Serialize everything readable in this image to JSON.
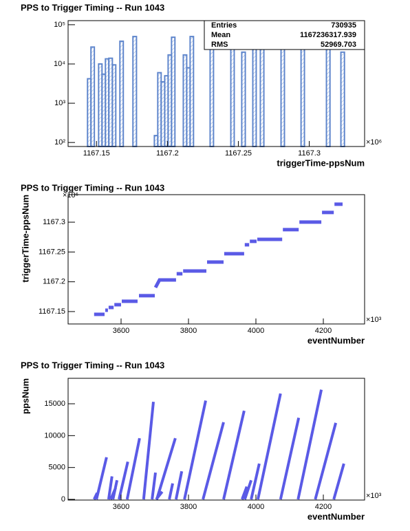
{
  "chart_data": [
    {
      "type": "histogram",
      "title": "PPS to Trigger Timing -- Run 1043",
      "x_label": "triggerTime-ppsNum",
      "x_multiplier": "×10⁶",
      "color": "#5f86cc",
      "log_y": true,
      "bins": [
        1167.1437,
        1167.1461,
        1167.1485,
        1167.1515,
        1167.1539,
        1167.1563,
        1167.1587,
        1167.1612,
        1167.1636,
        1167.1665,
        1167.1689,
        1167.1757,
        1167.1782,
        1167.1908,
        1167.1932,
        1167.1956,
        1167.1981,
        1167.2005,
        1167.2029,
        1167.2053,
        1167.2112,
        1167.2136,
        1167.216,
        1167.2184,
        1167.2301,
        1167.2325,
        1167.2447,
        1167.2471,
        1167.2524,
        1167.2549,
        1167.2602,
        1167.2626,
        1167.2655,
        1167.268,
        1167.2801,
        1167.2825,
        1167.2942,
        1167.2966,
        1167.3121,
        1167.3146,
        1167.3223,
        1167.3248
      ],
      "counts": [
        4200,
        27000,
        0,
        10000,
        5500,
        13500,
        14000,
        9500,
        0,
        38000,
        0,
        50000,
        0,
        150,
        6000,
        3500,
        5000,
        17000,
        48000,
        0,
        17000,
        8000,
        50000,
        0,
        45000,
        0,
        60000,
        0,
        20000,
        0,
        25000,
        0,
        65000,
        0,
        45000,
        0,
        50000,
        0,
        55000,
        0,
        20000
      ],
      "xlim": [
        1167.13,
        1167.339
      ],
      "xticks": [
        1167.15,
        1167.2,
        1167.25,
        1167.3
      ],
      "ylim": [
        79,
        127000
      ],
      "yticks": [
        {
          "value": 100,
          "label": "10²"
        },
        {
          "value": 1000,
          "label": "10³"
        },
        {
          "value": 10000,
          "label": "10⁴"
        },
        {
          "value": 100000,
          "label": "10⁵"
        }
      ],
      "stats": [
        {
          "label": "Entries",
          "value": 730935
        },
        {
          "label": "Mean",
          "value": 1167236317.939
        },
        {
          "label": "RMS",
          "value": 52969.703
        }
      ]
    },
    {
      "type": "line",
      "title": "PPS to Trigger Timing -- Run 1043",
      "x_label": "eventNumber",
      "y_label": "triggerTime-ppsNum",
      "x_multiplier": "×10³",
      "y_multiplier": "×10⁶",
      "color": "#5a5ae6",
      "x": [
        3520,
        3551,
        null,
        3553,
        3561,
        null,
        3563,
        3578,
        null,
        3580,
        3600,
        null,
        3602,
        3649,
        null,
        3653,
        3700,
        null,
        3702,
        3714,
        3763,
        null,
        3765,
        3782,
        null,
        3784,
        3853,
        null,
        3855,
        3904,
        null,
        3906,
        3965,
        null,
        3967,
        3980,
        null,
        3982,
        4002,
        null,
        4004,
        4078,
        null,
        4080,
        4127,
        null,
        4129,
        4194,
        null,
        4196,
        4231,
        null,
        4233,
        4257
      ],
      "values": [
        1167.1454,
        1167.1454,
        null,
        1167.1523,
        1167.1523,
        null,
        1167.1569,
        1167.1569,
        null,
        1167.1615,
        1167.1615,
        null,
        1167.1673,
        1167.1673,
        null,
        1167.1766,
        1167.1766,
        null,
        1167.1904,
        1167.2031,
        1167.2031,
        null,
        1167.2135,
        1167.2135,
        null,
        1167.2181,
        1167.2181,
        null,
        1167.2331,
        1167.2331,
        null,
        1167.247,
        1167.247,
        null,
        1167.262,
        1167.262,
        null,
        1167.2678,
        1167.2678,
        null,
        1167.2712,
        1167.2712,
        null,
        1167.2874,
        1167.2874,
        null,
        1167.3001,
        1167.3001,
        null,
        1167.3163,
        1167.3163,
        null,
        1167.3301,
        1167.3301
      ],
      "xlim": [
        3442.9,
        4322.4
      ],
      "xticks": [
        3600,
        3800,
        4000,
        4200
      ],
      "ylim": [
        1167.1292,
        1167.3462
      ],
      "yticks": [
        1167.15,
        1167.2,
        1167.25,
        1167.3
      ]
    },
    {
      "type": "line",
      "title": "PPS to Trigger Timing -- Run 1043",
      "x_label": "eventNumber",
      "y_label": "ppsNum",
      "x_multiplier": "×10³",
      "color": "#5a5ae6",
      "x": [
        3520,
        3529,
        null,
        3527,
        3557,
        null,
        3563,
        3573,
        null,
        3569,
        3584,
        null,
        3576,
        3588,
        null,
        3594,
        3620,
        null,
        3618,
        3655,
        null,
        3667,
        3696,
        null,
        3692,
        3702,
        null,
        3704,
        3722,
        null,
        3706,
        3761,
        null,
        3743,
        3753,
        null,
        3763,
        3780,
        null,
        3788,
        3851,
        null,
        3843,
        3904,
        null,
        3904,
        3965,
        null,
        3959,
        3973,
        null,
        3967,
        3986,
        null,
        3986,
        4010,
        null,
        4006,
        4073,
        null,
        4073,
        4127,
        null,
        4125,
        4194,
        null,
        4176,
        4237,
        null,
        4231,
        4261
      ],
      "values": [
        0,
        1000,
        null,
        0,
        6600,
        null,
        0,
        3600,
        null,
        0,
        1800,
        null,
        0,
        3000,
        null,
        0,
        5900,
        null,
        0,
        9600,
        null,
        0,
        15300,
        null,
        0,
        4200,
        null,
        0,
        1200,
        null,
        0,
        9600,
        null,
        0,
        2500,
        null,
        0,
        4400,
        null,
        0,
        15500,
        null,
        0,
        12100,
        null,
        0,
        13900,
        null,
        0,
        2000,
        null,
        0,
        3000,
        null,
        0,
        5600,
        null,
        0,
        16600,
        null,
        0,
        12800,
        null,
        0,
        17200,
        null,
        0,
        12000,
        null,
        0,
        5600
      ],
      "xlim": [
        3442.9,
        4322.4
      ],
      "xticks": [
        3600,
        3800,
        4000,
        4200
      ],
      "ylim": [
        -108,
        18996
      ],
      "yticks": [
        0,
        5000,
        10000,
        15000
      ]
    }
  ]
}
